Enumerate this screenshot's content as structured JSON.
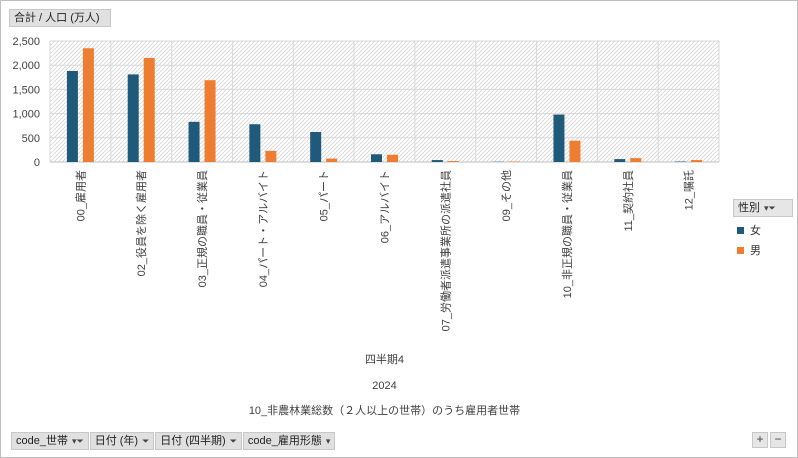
{
  "value_field": {
    "label": "合計 / 人口 (万人)"
  },
  "legend": {
    "title": "性別",
    "items": [
      {
        "name": "女",
        "color": "#1f5a7a"
      },
      {
        "name": "男",
        "color": "#ed7d31"
      }
    ]
  },
  "axis_fields": [
    "code_世帯",
    "日付 (年)",
    "日付 (四半期)",
    "code_雇用形態"
  ],
  "zoom": {
    "plus": "+",
    "minus": "−"
  },
  "chart_data": {
    "type": "bar",
    "categories": [
      "00_雇用者",
      "02_役員を除く雇用者",
      "03_正規の職員・従業員",
      "04_パート・アルバイト",
      "05_パート",
      "06_アルバイト",
      "07_労働者派遣事業所の派遣社員",
      "09_その他",
      "10_非正規の職員・従業員",
      "11_契約社員",
      "12_嘱託"
    ],
    "series": [
      {
        "name": "女",
        "color": "#1f5a7a",
        "values": [
          1880,
          1810,
          830,
          780,
          620,
          160,
          40,
          5,
          980,
          60,
          10
        ]
      },
      {
        "name": "男",
        "color": "#ed7d31",
        "values": [
          2350,
          2150,
          1690,
          230,
          70,
          150,
          20,
          10,
          440,
          80,
          40
        ]
      }
    ],
    "group_labels": [
      "四半期4",
      "2024",
      "10_非農林業総数（２人以上の世帯）のうち雇用者世帯"
    ],
    "ylim": [
      0,
      2500
    ],
    "yticks": [
      0,
      500,
      1000,
      1500,
      2000,
      2500
    ],
    "ytick_labels": [
      "0",
      "500",
      "1,000",
      "1,500",
      "2,000",
      "2,500"
    ],
    "grid": true,
    "legend_position": "right"
  }
}
